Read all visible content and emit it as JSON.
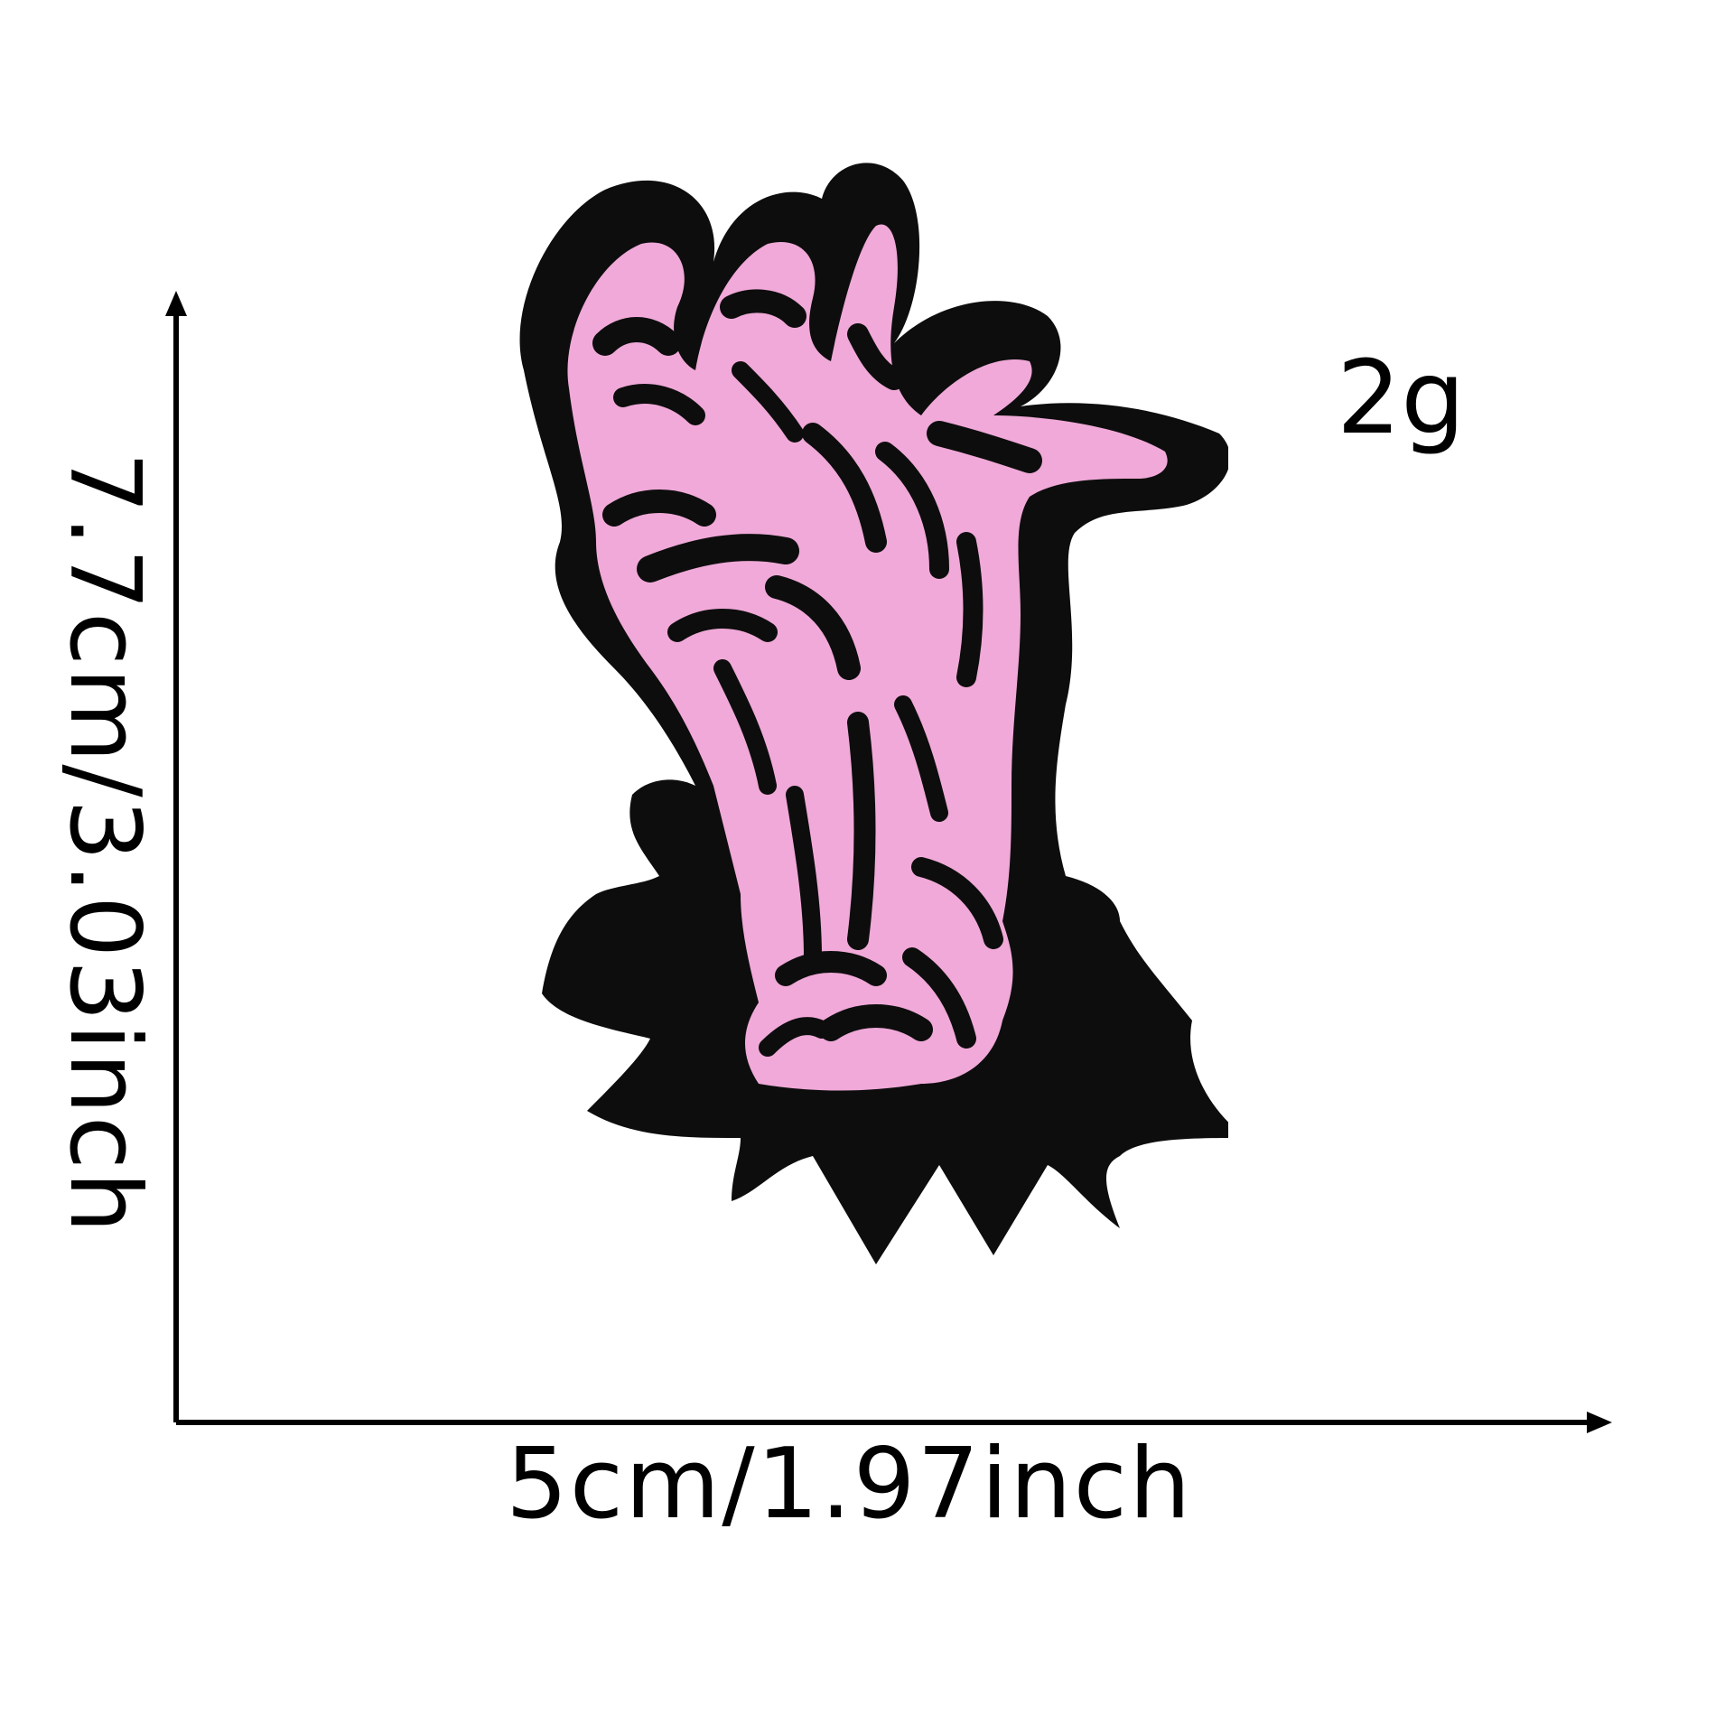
{
  "dimensions": {
    "height_label": "7.7cm/3.03inch",
    "width_label": "5cm/1.97inch",
    "weight_label": "2g"
  },
  "product": {
    "subject": "zombie-hand-patch-icon",
    "colors": {
      "patch_black": "#0d0d0d",
      "patch_pink": "#f0a9d8",
      "background": "#ffffff",
      "dimension_lines": "#000000"
    }
  }
}
